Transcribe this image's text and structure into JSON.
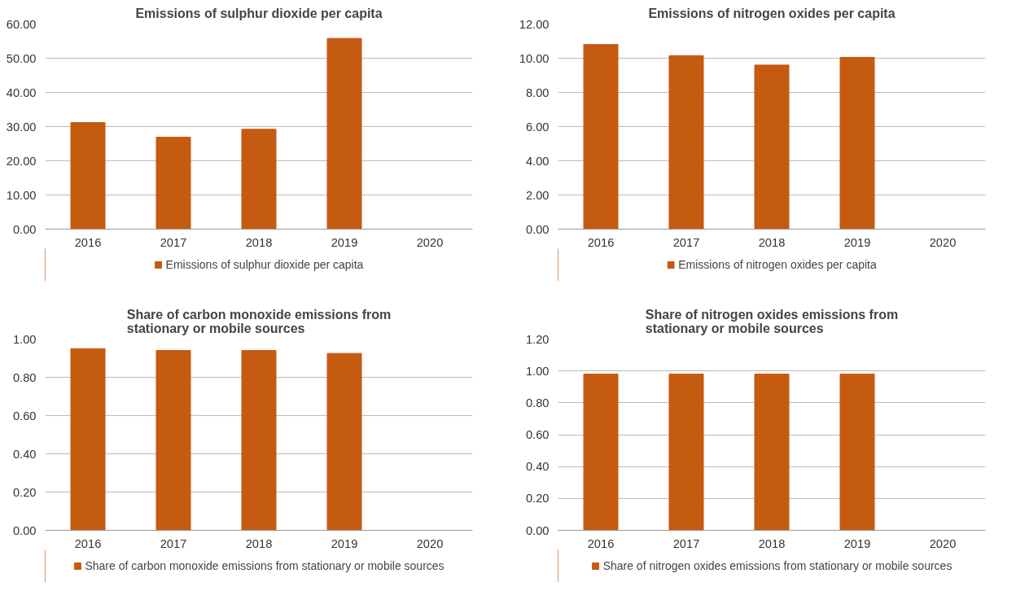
{
  "chart_data": [
    {
      "type": "bar",
      "title": "Emissions of sulphur dioxide per capita",
      "categories": [
        "2016",
        "2017",
        "2018",
        "2019",
        "2020"
      ],
      "series": [
        {
          "name": "Emissions of sulphur dioxide per capita",
          "color": "#c55a11",
          "values": [
            31.2,
            26.9,
            29.2,
            55.8,
            null
          ]
        }
      ],
      "ylim": [
        0,
        60
      ],
      "yticks": [
        {
          "value": 0,
          "label": "0.00"
        },
        {
          "value": 10,
          "label": "10.00"
        },
        {
          "value": 20,
          "label": "20.00"
        },
        {
          "value": 30,
          "label": "30.00"
        },
        {
          "value": 40,
          "label": "40.00"
        },
        {
          "value": 50,
          "label": "50.00"
        },
        {
          "value": 60,
          "label": "60.00"
        }
      ],
      "grid": "y",
      "legend": "bottom"
    },
    {
      "type": "bar",
      "title": "Emissions of nitrogen oxides per capita",
      "categories": [
        "2016",
        "2017",
        "2018",
        "2019",
        "2020"
      ],
      "series": [
        {
          "name": "Emissions of nitrogen oxides per capita",
          "color": "#c55a11",
          "values": [
            10.8,
            10.15,
            9.6,
            10.05,
            null
          ]
        }
      ],
      "ylim": [
        0,
        12
      ],
      "yticks": [
        {
          "value": 0,
          "label": "0.00"
        },
        {
          "value": 2,
          "label": "2.00"
        },
        {
          "value": 4,
          "label": "4.00"
        },
        {
          "value": 6,
          "label": "6.00"
        },
        {
          "value": 8,
          "label": "8.00"
        },
        {
          "value": 10,
          "label": "10.00"
        },
        {
          "value": 12,
          "label": "12.00"
        }
      ],
      "grid": "y",
      "legend": "bottom"
    },
    {
      "type": "bar",
      "title": "Share of carbon monoxide emissions from stationary or mobile sources",
      "categories": [
        "2016",
        "2017",
        "2018",
        "2019",
        "2020"
      ],
      "series": [
        {
          "name": "Share of carbon monoxide emissions from stationary or mobile sources",
          "color": "#c55a11",
          "values": [
            0.95,
            0.94,
            0.94,
            0.925,
            null
          ]
        }
      ],
      "ylim": [
        0,
        1
      ],
      "yticks": [
        {
          "value": 0,
          "label": "0.00"
        },
        {
          "value": 0.2,
          "label": "0.20"
        },
        {
          "value": 0.4,
          "label": "0.40"
        },
        {
          "value": 0.6,
          "label": "0.60"
        },
        {
          "value": 0.8,
          "label": "0.80"
        },
        {
          "value": 1,
          "label": "1.00"
        }
      ],
      "grid": "y",
      "legend": "bottom"
    },
    {
      "type": "bar",
      "title": "Share of nitrogen oxides emissions from stationary or mobile sources",
      "categories": [
        "2016",
        "2017",
        "2018",
        "2019",
        "2020"
      ],
      "series": [
        {
          "name": "Share of nitrogen oxides emissions from stationary or mobile sources",
          "color": "#c55a11",
          "values": [
            0.98,
            0.98,
            0.98,
            0.98,
            null
          ]
        }
      ],
      "ylim": [
        0,
        1.2
      ],
      "yticks": [
        {
          "value": 0,
          "label": "0.00"
        },
        {
          "value": 0.2,
          "label": "0.20"
        },
        {
          "value": 0.4,
          "label": "0.40"
        },
        {
          "value": 0.6,
          "label": "0.60"
        },
        {
          "value": 0.8,
          "label": "0.80"
        },
        {
          "value": 1,
          "label": "1.00"
        },
        {
          "value": 1.2,
          "label": "1.20"
        }
      ],
      "grid": "y",
      "legend": "bottom"
    }
  ]
}
